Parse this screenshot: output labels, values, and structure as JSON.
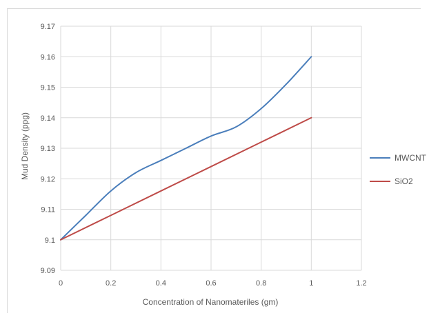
{
  "chart_data": {
    "type": "line",
    "title": "",
    "xlabel": "Concentration of Nanomateriles (gm)",
    "ylabel": "Mud Density (ppg)",
    "xlim": [
      0,
      1.2
    ],
    "ylim": [
      9.09,
      9.17
    ],
    "x_ticks": [
      "0",
      "0.2",
      "0.4",
      "0.6",
      "0.8",
      "1",
      "1.2"
    ],
    "y_ticks": [
      "9.09",
      "9.1",
      "9.11",
      "9.12",
      "9.13",
      "9.14",
      "9.15",
      "9.16",
      "9.17"
    ],
    "grid": true,
    "legend_position": "right",
    "series": [
      {
        "name": "MWCNT",
        "color": "#4a7ebb",
        "x": [
          0,
          0.1,
          0.2,
          0.3,
          0.4,
          0.5,
          0.6,
          0.7,
          0.8,
          0.9,
          1
        ],
        "values": [
          9.1,
          9.108,
          9.116,
          9.122,
          9.126,
          9.13,
          9.134,
          9.137,
          9.143,
          9.151,
          9.16
        ]
      },
      {
        "name": "SiO2",
        "color": "#be4b48",
        "x": [
          0,
          0.2,
          0.4,
          0.6,
          0.8,
          1
        ],
        "values": [
          9.1,
          9.108,
          9.116,
          9.124,
          9.132,
          9.14
        ]
      }
    ]
  }
}
